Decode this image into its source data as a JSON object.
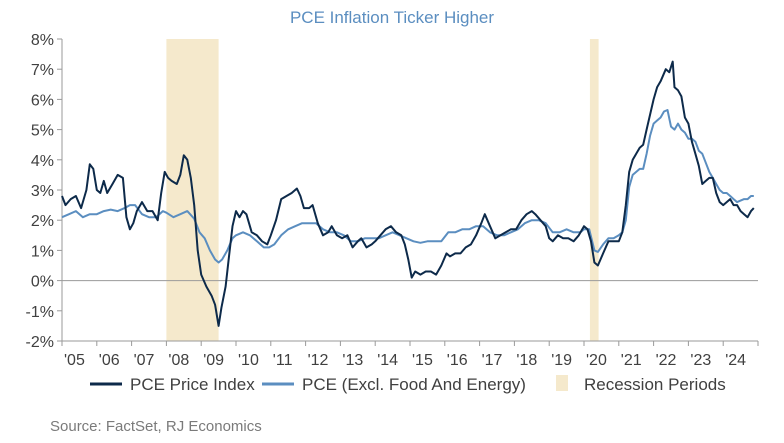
{
  "chart_data": {
    "type": "line",
    "title": "PCE Inflation Ticker Higher",
    "xlabel": "",
    "ylabel": "",
    "x_range": [
      2005.0,
      2025.0
    ],
    "ylim": [
      -2,
      8
    ],
    "y_ticks": [
      -2,
      -1,
      0,
      1,
      2,
      3,
      4,
      5,
      6,
      7,
      8
    ],
    "y_tick_labels": [
      "-2%",
      "-1%",
      "0%",
      "1%",
      "2%",
      "3%",
      "4%",
      "5%",
      "6%",
      "7%",
      "8%"
    ],
    "x_ticks": [
      2005,
      2006,
      2007,
      2008,
      2009,
      2010,
      2011,
      2012,
      2013,
      2014,
      2015,
      2016,
      2017,
      2018,
      2019,
      2020,
      2021,
      2022,
      2023,
      2024
    ],
    "x_tick_labels": [
      "'05",
      "'06",
      "'07",
      "'08",
      "'09",
      "'10",
      "'11",
      "'12",
      "'13",
      "'14",
      "'15",
      "'16",
      "'17",
      "'18",
      "'19",
      "'20",
      "'21",
      "'22",
      "'23",
      "'24"
    ],
    "grid": false,
    "zero_line": true,
    "legend_position": "bottom",
    "recession_periods": {
      "name": "Recession Periods",
      "color": "#f5e9cc",
      "ranges": [
        [
          2008.0,
          2009.5
        ],
        [
          2020.17,
          2020.42
        ]
      ]
    },
    "series": [
      {
        "name": "PCE Price Index",
        "color": "#0d2a4a",
        "points": [
          [
            2005.0,
            2.8
          ],
          [
            2005.1,
            2.5
          ],
          [
            2005.25,
            2.7
          ],
          [
            2005.4,
            2.8
          ],
          [
            2005.55,
            2.4
          ],
          [
            2005.7,
            3.0
          ],
          [
            2005.8,
            3.85
          ],
          [
            2005.9,
            3.7
          ],
          [
            2006.0,
            3.0
          ],
          [
            2006.1,
            2.9
          ],
          [
            2006.2,
            3.3
          ],
          [
            2006.3,
            2.9
          ],
          [
            2006.45,
            3.2
          ],
          [
            2006.6,
            3.5
          ],
          [
            2006.75,
            3.4
          ],
          [
            2006.85,
            2.1
          ],
          [
            2006.95,
            1.7
          ],
          [
            2007.05,
            1.9
          ],
          [
            2007.15,
            2.3
          ],
          [
            2007.3,
            2.6
          ],
          [
            2007.45,
            2.3
          ],
          [
            2007.6,
            2.3
          ],
          [
            2007.75,
            2.0
          ],
          [
            2007.85,
            2.9
          ],
          [
            2007.95,
            3.6
          ],
          [
            2008.05,
            3.4
          ],
          [
            2008.15,
            3.3
          ],
          [
            2008.3,
            3.2
          ],
          [
            2008.4,
            3.5
          ],
          [
            2008.5,
            4.15
          ],
          [
            2008.6,
            4.0
          ],
          [
            2008.7,
            3.4
          ],
          [
            2008.8,
            2.5
          ],
          [
            2008.9,
            1.0
          ],
          [
            2009.0,
            0.2
          ],
          [
            2009.15,
            -0.2
          ],
          [
            2009.3,
            -0.5
          ],
          [
            2009.4,
            -0.8
          ],
          [
            2009.5,
            -1.5
          ],
          [
            2009.58,
            -0.9
          ],
          [
            2009.7,
            -0.2
          ],
          [
            2009.8,
            0.8
          ],
          [
            2009.9,
            1.8
          ],
          [
            2010.0,
            2.3
          ],
          [
            2010.1,
            2.1
          ],
          [
            2010.2,
            2.3
          ],
          [
            2010.3,
            2.2
          ],
          [
            2010.45,
            1.6
          ],
          [
            2010.6,
            1.5
          ],
          [
            2010.75,
            1.3
          ],
          [
            2010.9,
            1.2
          ],
          [
            2011.0,
            1.5
          ],
          [
            2011.15,
            2.0
          ],
          [
            2011.3,
            2.7
          ],
          [
            2011.45,
            2.8
          ],
          [
            2011.6,
            2.9
          ],
          [
            2011.75,
            3.05
          ],
          [
            2011.85,
            2.8
          ],
          [
            2011.95,
            2.4
          ],
          [
            2012.1,
            2.4
          ],
          [
            2012.2,
            2.5
          ],
          [
            2012.35,
            1.9
          ],
          [
            2012.5,
            1.5
          ],
          [
            2012.65,
            1.6
          ],
          [
            2012.75,
            1.8
          ],
          [
            2012.9,
            1.5
          ],
          [
            2013.05,
            1.4
          ],
          [
            2013.2,
            1.5
          ],
          [
            2013.35,
            1.1
          ],
          [
            2013.5,
            1.3
          ],
          [
            2013.6,
            1.4
          ],
          [
            2013.75,
            1.1
          ],
          [
            2013.9,
            1.2
          ],
          [
            2014.0,
            1.3
          ],
          [
            2014.15,
            1.5
          ],
          [
            2014.3,
            1.7
          ],
          [
            2014.45,
            1.8
          ],
          [
            2014.6,
            1.6
          ],
          [
            2014.75,
            1.5
          ],
          [
            2014.85,
            1.2
          ],
          [
            2014.95,
            0.7
          ],
          [
            2015.05,
            0.1
          ],
          [
            2015.15,
            0.3
          ],
          [
            2015.3,
            0.2
          ],
          [
            2015.45,
            0.3
          ],
          [
            2015.6,
            0.3
          ],
          [
            2015.75,
            0.2
          ],
          [
            2015.9,
            0.5
          ],
          [
            2016.05,
            0.9
          ],
          [
            2016.15,
            0.8
          ],
          [
            2016.3,
            0.9
          ],
          [
            2016.45,
            0.9
          ],
          [
            2016.6,
            1.1
          ],
          [
            2016.75,
            1.2
          ],
          [
            2016.9,
            1.5
          ],
          [
            2017.05,
            1.9
          ],
          [
            2017.15,
            2.2
          ],
          [
            2017.3,
            1.8
          ],
          [
            2017.45,
            1.4
          ],
          [
            2017.6,
            1.5
          ],
          [
            2017.75,
            1.6
          ],
          [
            2017.9,
            1.7
          ],
          [
            2018.05,
            1.7
          ],
          [
            2018.2,
            2.0
          ],
          [
            2018.35,
            2.2
          ],
          [
            2018.5,
            2.3
          ],
          [
            2018.6,
            2.2
          ],
          [
            2018.75,
            2.0
          ],
          [
            2018.9,
            1.8
          ],
          [
            2019.0,
            1.4
          ],
          [
            2019.1,
            1.3
          ],
          [
            2019.25,
            1.5
          ],
          [
            2019.4,
            1.4
          ],
          [
            2019.55,
            1.4
          ],
          [
            2019.7,
            1.3
          ],
          [
            2019.85,
            1.5
          ],
          [
            2020.0,
            1.8
          ],
          [
            2020.1,
            1.7
          ],
          [
            2020.2,
            1.3
          ],
          [
            2020.3,
            0.6
          ],
          [
            2020.4,
            0.5
          ],
          [
            2020.55,
            0.9
          ],
          [
            2020.7,
            1.3
          ],
          [
            2020.85,
            1.3
          ],
          [
            2021.0,
            1.3
          ],
          [
            2021.1,
            1.6
          ],
          [
            2021.2,
            2.5
          ],
          [
            2021.3,
            3.6
          ],
          [
            2021.4,
            4.0
          ],
          [
            2021.5,
            4.2
          ],
          [
            2021.6,
            4.4
          ],
          [
            2021.7,
            4.5
          ],
          [
            2021.8,
            5.0
          ],
          [
            2021.9,
            5.5
          ],
          [
            2022.0,
            6.0
          ],
          [
            2022.1,
            6.4
          ],
          [
            2022.2,
            6.6
          ],
          [
            2022.35,
            7.0
          ],
          [
            2022.45,
            6.9
          ],
          [
            2022.55,
            7.25
          ],
          [
            2022.6,
            6.4
          ],
          [
            2022.7,
            6.3
          ],
          [
            2022.8,
            6.1
          ],
          [
            2022.9,
            5.4
          ],
          [
            2023.0,
            5.2
          ],
          [
            2023.1,
            4.6
          ],
          [
            2023.2,
            4.2
          ],
          [
            2023.3,
            3.8
          ],
          [
            2023.4,
            3.2
          ],
          [
            2023.5,
            3.3
          ],
          [
            2023.6,
            3.4
          ],
          [
            2023.7,
            3.4
          ],
          [
            2023.8,
            2.9
          ],
          [
            2023.9,
            2.6
          ],
          [
            2024.0,
            2.5
          ],
          [
            2024.1,
            2.6
          ],
          [
            2024.2,
            2.7
          ],
          [
            2024.3,
            2.5
          ],
          [
            2024.4,
            2.5
          ],
          [
            2024.5,
            2.3
          ],
          [
            2024.6,
            2.2
          ],
          [
            2024.7,
            2.1
          ],
          [
            2024.8,
            2.3
          ],
          [
            2024.88,
            2.4
          ]
        ]
      },
      {
        "name": "PCE (Excl. Food And Energy)",
        "color": "#5b8ec0",
        "points": [
          [
            2005.0,
            2.1
          ],
          [
            2005.2,
            2.2
          ],
          [
            2005.4,
            2.3
          ],
          [
            2005.6,
            2.1
          ],
          [
            2005.8,
            2.2
          ],
          [
            2006.0,
            2.2
          ],
          [
            2006.2,
            2.3
          ],
          [
            2006.4,
            2.35
          ],
          [
            2006.6,
            2.3
          ],
          [
            2006.8,
            2.4
          ],
          [
            2006.95,
            2.5
          ],
          [
            2007.1,
            2.5
          ],
          [
            2007.3,
            2.2
          ],
          [
            2007.5,
            2.1
          ],
          [
            2007.7,
            2.1
          ],
          [
            2007.9,
            2.3
          ],
          [
            2008.0,
            2.25
          ],
          [
            2008.2,
            2.1
          ],
          [
            2008.4,
            2.2
          ],
          [
            2008.6,
            2.3
          ],
          [
            2008.8,
            2.05
          ],
          [
            2008.95,
            1.6
          ],
          [
            2009.1,
            1.4
          ],
          [
            2009.25,
            1.0
          ],
          [
            2009.4,
            0.7
          ],
          [
            2009.5,
            0.6
          ],
          [
            2009.6,
            0.7
          ],
          [
            2009.75,
            1.0
          ],
          [
            2009.9,
            1.4
          ],
          [
            2010.0,
            1.5
          ],
          [
            2010.2,
            1.6
          ],
          [
            2010.4,
            1.5
          ],
          [
            2010.6,
            1.3
          ],
          [
            2010.8,
            1.1
          ],
          [
            2010.95,
            1.1
          ],
          [
            2011.1,
            1.2
          ],
          [
            2011.3,
            1.5
          ],
          [
            2011.5,
            1.7
          ],
          [
            2011.7,
            1.8
          ],
          [
            2011.9,
            1.9
          ],
          [
            2012.1,
            1.9
          ],
          [
            2012.3,
            1.9
          ],
          [
            2012.5,
            1.7
          ],
          [
            2012.7,
            1.6
          ],
          [
            2012.9,
            1.6
          ],
          [
            2013.1,
            1.5
          ],
          [
            2013.3,
            1.3
          ],
          [
            2013.5,
            1.3
          ],
          [
            2013.7,
            1.4
          ],
          [
            2013.9,
            1.4
          ],
          [
            2014.1,
            1.4
          ],
          [
            2014.3,
            1.5
          ],
          [
            2014.5,
            1.6
          ],
          [
            2014.7,
            1.5
          ],
          [
            2014.9,
            1.4
          ],
          [
            2015.1,
            1.3
          ],
          [
            2015.3,
            1.25
          ],
          [
            2015.5,
            1.3
          ],
          [
            2015.7,
            1.3
          ],
          [
            2015.9,
            1.3
          ],
          [
            2016.1,
            1.6
          ],
          [
            2016.3,
            1.6
          ],
          [
            2016.5,
            1.7
          ],
          [
            2016.7,
            1.7
          ],
          [
            2016.9,
            1.8
          ],
          [
            2017.1,
            1.8
          ],
          [
            2017.3,
            1.6
          ],
          [
            2017.5,
            1.5
          ],
          [
            2017.7,
            1.5
          ],
          [
            2017.9,
            1.6
          ],
          [
            2018.1,
            1.7
          ],
          [
            2018.3,
            1.9
          ],
          [
            2018.5,
            2.0
          ],
          [
            2018.7,
            2.0
          ],
          [
            2018.9,
            1.9
          ],
          [
            2019.1,
            1.6
          ],
          [
            2019.3,
            1.6
          ],
          [
            2019.5,
            1.7
          ],
          [
            2019.7,
            1.6
          ],
          [
            2019.9,
            1.6
          ],
          [
            2020.0,
            1.7
          ],
          [
            2020.15,
            1.7
          ],
          [
            2020.3,
            1.0
          ],
          [
            2020.4,
            0.95
          ],
          [
            2020.55,
            1.2
          ],
          [
            2020.7,
            1.4
          ],
          [
            2020.85,
            1.4
          ],
          [
            2021.0,
            1.5
          ],
          [
            2021.1,
            1.6
          ],
          [
            2021.2,
            2.0
          ],
          [
            2021.3,
            3.1
          ],
          [
            2021.4,
            3.5
          ],
          [
            2021.5,
            3.6
          ],
          [
            2021.6,
            3.7
          ],
          [
            2021.7,
            3.7
          ],
          [
            2021.8,
            4.2
          ],
          [
            2021.9,
            4.8
          ],
          [
            2022.0,
            5.2
          ],
          [
            2022.1,
            5.3
          ],
          [
            2022.2,
            5.4
          ],
          [
            2022.3,
            5.6
          ],
          [
            2022.4,
            5.65
          ],
          [
            2022.5,
            5.1
          ],
          [
            2022.6,
            5.0
          ],
          [
            2022.7,
            5.2
          ],
          [
            2022.8,
            5.0
          ],
          [
            2022.9,
            4.9
          ],
          [
            2023.0,
            4.7
          ],
          [
            2023.1,
            4.7
          ],
          [
            2023.2,
            4.6
          ],
          [
            2023.3,
            4.3
          ],
          [
            2023.4,
            4.2
          ],
          [
            2023.5,
            3.9
          ],
          [
            2023.6,
            3.6
          ],
          [
            2023.7,
            3.4
          ],
          [
            2023.8,
            3.2
          ],
          [
            2023.9,
            3.0
          ],
          [
            2024.0,
            2.9
          ],
          [
            2024.1,
            2.9
          ],
          [
            2024.2,
            2.8
          ],
          [
            2024.3,
            2.7
          ],
          [
            2024.4,
            2.6
          ],
          [
            2024.5,
            2.65
          ],
          [
            2024.6,
            2.7
          ],
          [
            2024.7,
            2.7
          ],
          [
            2024.8,
            2.8
          ],
          [
            2024.88,
            2.8
          ]
        ]
      }
    ]
  },
  "legend": {
    "items": [
      {
        "label": "PCE Price Index",
        "color": "#0d2a4a",
        "kind": "line"
      },
      {
        "label": "PCE (Excl. Food And Energy)",
        "color": "#5b8ec0",
        "kind": "line"
      },
      {
        "label": "Recession Periods",
        "color": "#f5e9cc",
        "kind": "box"
      }
    ]
  },
  "source_note": "Source: FactSet, RJ Economics",
  "colors": {
    "title": "#5b8ec0",
    "axis": "#9a9a9a",
    "zero_line": "#9a9a9a",
    "text": "#404040"
  }
}
